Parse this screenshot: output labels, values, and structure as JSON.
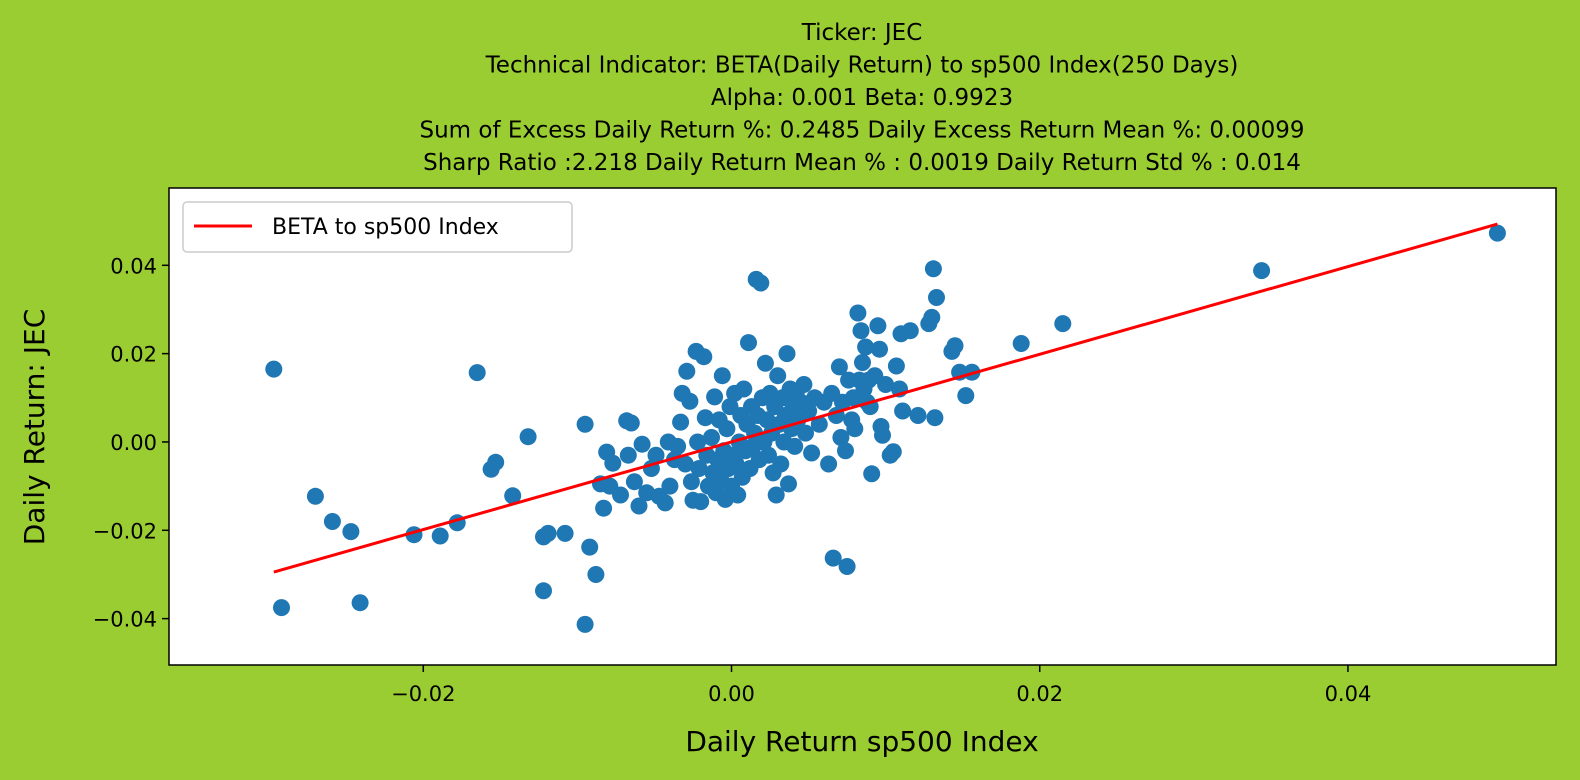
{
  "colors": {
    "background": "#9acd32",
    "plot_area": "#ffffff",
    "points": "#1f77b4",
    "regression_line": "#ff0000"
  },
  "chart_data": {
    "type": "scatter",
    "title_lines": [
      "Ticker: JEC",
      "Technical Indicator: BETA(Daily Return) to sp500 Index(250 Days)",
      "Alpha: 0.001   Beta: 0.9923",
      "Sum of Excess Daily Return %: 0.2485   Daily Excess Return Mean %: 0.00099",
      "Sharp Ratio :2.218    Daily Return Mean % : 0.0019    Daily Return Std % : 0.014"
    ],
    "xlabel": "Daily Return sp500 Index",
    "ylabel": "Daily Return: JEC",
    "xlim": [
      -0.0365,
      0.0535
    ],
    "ylim": [
      -0.0505,
      0.0575
    ],
    "xticks": [
      -0.02,
      0.0,
      0.02,
      0.04
    ],
    "xtick_labels": [
      "−0.02",
      "0.00",
      "0.02",
      "0.04"
    ],
    "yticks": [
      -0.04,
      -0.02,
      0.0,
      0.02,
      0.04
    ],
    "ytick_labels": [
      "−0.04",
      "−0.02",
      "0.00",
      "0.02",
      "0.04"
    ],
    "grid": false,
    "legend": {
      "position": "top-left",
      "entries": [
        "BETA to sp500 Index"
      ]
    },
    "regression_line": {
      "alpha": 0.001,
      "beta": 0.9923,
      "x_range": [
        -0.0297,
        0.0497
      ]
    },
    "series": [
      {
        "kind": "points",
        "points": [
          [
            -0.0297,
            0.0165
          ],
          [
            -0.0292,
            -0.0375
          ],
          [
            -0.027,
            -0.0123
          ],
          [
            -0.0259,
            -0.018
          ],
          [
            -0.0247,
            -0.0203
          ],
          [
            -0.0241,
            -0.0364
          ],
          [
            -0.0206,
            -0.021
          ],
          [
            -0.0189,
            -0.0213
          ],
          [
            -0.0178,
            -0.0183
          ],
          [
            -0.0165,
            0.0157
          ],
          [
            -0.0156,
            -0.0062
          ],
          [
            -0.0153,
            -0.0046
          ],
          [
            -0.0142,
            -0.0122
          ],
          [
            -0.0132,
            0.0012
          ],
          [
            -0.0122,
            -0.0215
          ],
          [
            -0.0119,
            -0.0207
          ],
          [
            -0.0122,
            -0.0337
          ],
          [
            -0.0108,
            -0.0207
          ],
          [
            -0.0095,
            -0.0413
          ],
          [
            -0.0095,
            0.004
          ],
          [
            -0.0092,
            -0.0238
          ],
          [
            -0.0088,
            -0.03
          ],
          [
            -0.0085,
            -0.0095
          ],
          [
            -0.0083,
            -0.015
          ],
          [
            -0.0081,
            -0.0023
          ],
          [
            -0.0079,
            -0.01
          ],
          [
            -0.0077,
            -0.0048
          ],
          [
            -0.0072,
            -0.012
          ],
          [
            -0.0068,
            0.0048
          ],
          [
            -0.0065,
            0.0043
          ],
          [
            -0.0067,
            -0.003
          ],
          [
            -0.0063,
            -0.009
          ],
          [
            -0.006,
            -0.0145
          ],
          [
            -0.0058,
            -0.0005
          ],
          [
            -0.0055,
            -0.0115
          ],
          [
            -0.0052,
            -0.006
          ],
          [
            -0.0049,
            -0.003
          ],
          [
            -0.0047,
            -0.0123
          ],
          [
            -0.0043,
            -0.0138
          ],
          [
            -0.0041,
            0.0
          ],
          [
            -0.004,
            -0.01
          ],
          [
            -0.0037,
            -0.004
          ],
          [
            -0.0035,
            -0.001
          ],
          [
            -0.0033,
            0.0045
          ],
          [
            -0.0032,
            0.011
          ],
          [
            -0.003,
            -0.005
          ],
          [
            -0.0029,
            0.016
          ],
          [
            -0.0027,
            0.0092
          ],
          [
            -0.0026,
            -0.009
          ],
          [
            -0.0025,
            -0.0132
          ],
          [
            -0.0023,
            0.0205
          ],
          [
            -0.0022,
            0.0
          ],
          [
            -0.0021,
            -0.006
          ],
          [
            -0.002,
            -0.0135
          ],
          [
            -0.0018,
            0.0193
          ],
          [
            -0.0017,
            0.0055
          ],
          [
            -0.0016,
            -0.003
          ],
          [
            -0.0015,
            -0.01
          ],
          [
            -0.0013,
            0.001
          ],
          [
            -0.0012,
            -0.007
          ],
          [
            -0.0011,
            0.0102
          ],
          [
            -0.001,
            -0.0115
          ],
          [
            -0.0009,
            -0.004
          ],
          [
            -0.0008,
            0.005
          ],
          [
            -0.0007,
            -0.0085
          ],
          [
            -0.0006,
            0.015
          ],
          [
            -0.0005,
            -0.002
          ],
          [
            -0.0004,
            -0.013
          ],
          [
            -0.0003,
            0.003
          ],
          [
            -0.0002,
            -0.006
          ],
          [
            -0.0001,
            0.008
          ],
          [
            0.0,
            -0.01
          ],
          [
            0.0001,
            -0.003
          ],
          [
            0.0002,
            0.011
          ],
          [
            0.0003,
            -0.005
          ],
          [
            0.0004,
            -0.012
          ],
          [
            0.0005,
            0.0
          ],
          [
            0.0006,
            0.006
          ],
          [
            0.0007,
            -0.008
          ],
          [
            0.0008,
            0.012
          ],
          [
            0.0009,
            -0.002
          ],
          [
            0.001,
            0.004
          ],
          [
            0.0011,
            0.0225
          ],
          [
            0.0012,
            -0.006
          ],
          [
            0.0013,
            0.008
          ],
          [
            0.0014,
            -0.001
          ],
          [
            0.0015,
            0.002
          ],
          [
            0.0016,
            0.0368
          ],
          [
            0.0017,
            0.006
          ],
          [
            0.0018,
            -0.004
          ],
          [
            0.0019,
            0.036
          ],
          [
            0.002,
            0.01
          ],
          [
            0.0021,
            0.0
          ],
          [
            0.0022,
            0.0178
          ],
          [
            0.0023,
            0.005
          ],
          [
            0.0024,
            -0.003
          ],
          [
            0.0025,
            0.011
          ],
          [
            0.0026,
            0.002
          ],
          [
            0.0027,
            -0.007
          ],
          [
            0.0028,
            0.008
          ],
          [
            0.0029,
            -0.012
          ],
          [
            0.003,
            0.015
          ],
          [
            0.0031,
            0.004
          ],
          [
            0.0032,
            -0.005
          ],
          [
            0.0033,
            0.01
          ],
          [
            0.0034,
            0.0
          ],
          [
            0.0035,
            0.006
          ],
          [
            0.0036,
            0.02
          ],
          [
            0.0037,
            -0.0095
          ],
          [
            0.0038,
            0.012
          ],
          [
            0.0039,
            0.003
          ],
          [
            0.004,
            0.008
          ],
          [
            0.0041,
            -0.001
          ],
          [
            0.0042,
            0.011
          ],
          [
            0.0043,
            0.005
          ],
          [
            0.0045,
            0.009
          ],
          [
            0.0047,
            0.013
          ],
          [
            0.0048,
            0.002
          ],
          [
            0.005,
            0.007
          ],
          [
            0.0052,
            -0.0025
          ],
          [
            0.0054,
            0.01
          ],
          [
            0.0057,
            0.004
          ],
          [
            0.006,
            0.009
          ],
          [
            0.0063,
            -0.005
          ],
          [
            0.0065,
            0.011
          ],
          [
            0.0066,
            -0.0263
          ],
          [
            0.0068,
            0.006
          ],
          [
            0.007,
            0.017
          ],
          [
            0.0071,
            0.001
          ],
          [
            0.0072,
            0.009
          ],
          [
            0.0074,
            -0.002
          ],
          [
            0.0075,
            -0.0282
          ],
          [
            0.0076,
            0.014
          ],
          [
            0.0078,
            0.005
          ],
          [
            0.0079,
            0.01
          ],
          [
            0.008,
            0.003
          ],
          [
            0.0082,
            0.0292
          ],
          [
            0.0083,
            0.014
          ],
          [
            0.0084,
            0.0252
          ],
          [
            0.0085,
            0.018
          ],
          [
            0.0086,
            0.012
          ],
          [
            0.0087,
            0.0215
          ],
          [
            0.0088,
            0.009
          ],
          [
            0.0089,
            0.014
          ],
          [
            0.009,
            0.008
          ],
          [
            0.0091,
            -0.0072
          ],
          [
            0.0093,
            0.015
          ],
          [
            0.0095,
            0.0263
          ],
          [
            0.0096,
            0.021
          ],
          [
            0.0097,
            0.0035
          ],
          [
            0.0098,
            0.0015
          ],
          [
            0.01,
            0.013
          ],
          [
            0.0103,
            -0.003
          ],
          [
            0.0105,
            -0.0022
          ],
          [
            0.0107,
            0.0172
          ],
          [
            0.0109,
            0.012
          ],
          [
            0.011,
            0.0245
          ],
          [
            0.0111,
            0.007
          ],
          [
            0.0116,
            0.0252
          ],
          [
            0.0121,
            0.006
          ],
          [
            0.0128,
            0.0268
          ],
          [
            0.013,
            0.0282
          ],
          [
            0.0131,
            0.0392
          ],
          [
            0.0132,
            0.0055
          ],
          [
            0.0133,
            0.0327
          ],
          [
            0.0143,
            0.0205
          ],
          [
            0.0145,
            0.0218
          ],
          [
            0.0148,
            0.0158
          ],
          [
            0.0152,
            0.0105
          ],
          [
            0.0156,
            0.0158
          ],
          [
            0.0188,
            0.0223
          ],
          [
            0.0215,
            0.0268
          ],
          [
            0.0344,
            0.0388
          ],
          [
            0.0497,
            0.0473
          ]
        ]
      },
      {
        "kind": "line",
        "name": "BETA to sp500 Index"
      }
    ]
  }
}
